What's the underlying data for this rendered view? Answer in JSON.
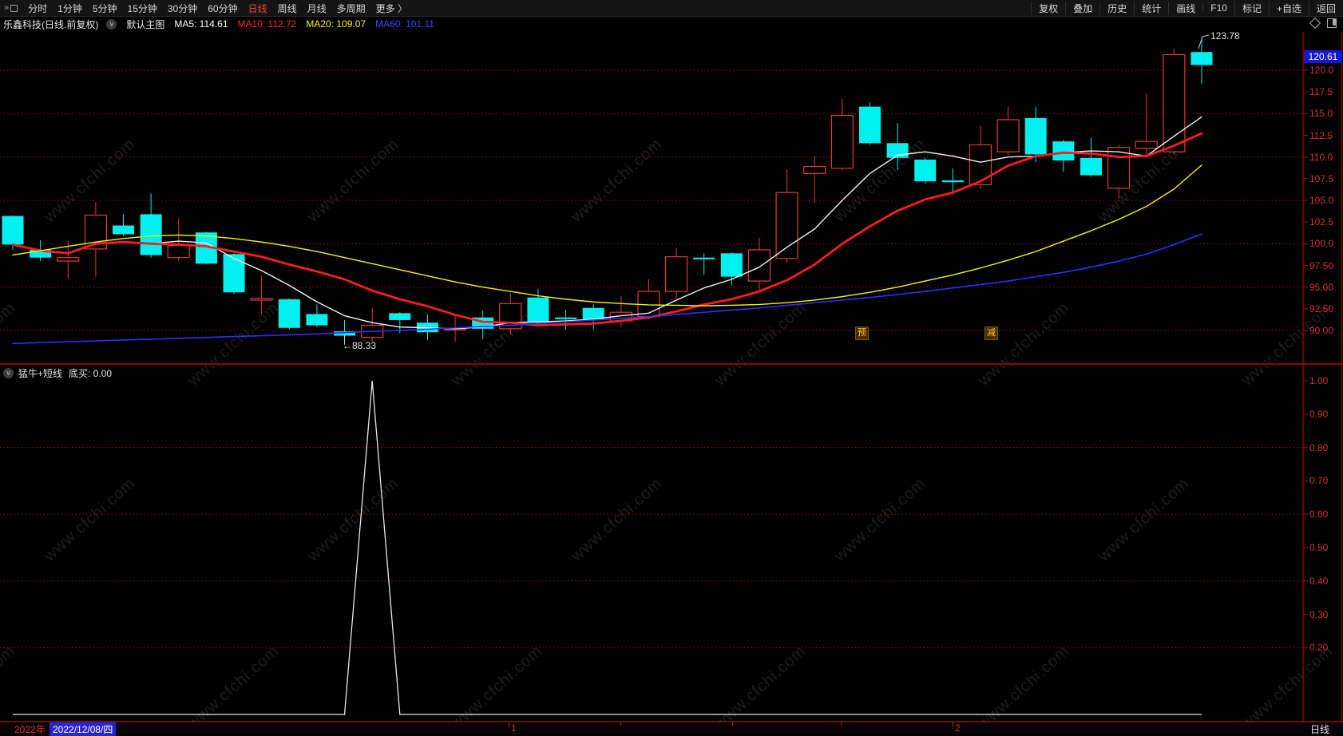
{
  "topbar": {
    "left_items": [
      "分时",
      "1分钟",
      "5分钟",
      "15分钟",
      "30分钟",
      "60分钟",
      "日线",
      "周线",
      "月线",
      "多周期",
      "更多 〉"
    ],
    "active_item": "日线",
    "right_items": [
      "复权",
      "叠加",
      "历史",
      "统计",
      "画线",
      "F10",
      "标记",
      "+自选",
      "返回"
    ]
  },
  "header": {
    "title": "乐鑫科技(日线.前复权)",
    "layout_label": "默认主图",
    "ma": [
      {
        "text": "MA5: 114.61",
        "color": "#ffffff"
      },
      {
        "text": "MA10: 112.72",
        "color": "#ff2525"
      },
      {
        "text": "MA20: 109.07",
        "color": "#f5f500"
      },
      {
        "text": "MA60: 101.11",
        "color": "#4242ff"
      }
    ]
  },
  "watermark": {
    "text": "www.cfchi.com"
  },
  "chart_data": {
    "type": "candlestick",
    "symbol": "乐鑫科技",
    "period": "日线",
    "adjust": "前复权",
    "first_visible_date": "2022/12/08",
    "ylim": [
      88,
      124
    ],
    "y_ticks": [
      "120.0",
      "117.5",
      "115.0",
      "112.5",
      "110.0",
      "107.5",
      "105.0",
      "102.5",
      "100.0",
      "97.50",
      "95.00",
      "92.50",
      "90.00"
    ],
    "y_tick_values": [
      120,
      117.5,
      115,
      112.5,
      110,
      107.5,
      105,
      102.5,
      100,
      97.5,
      95,
      92.5,
      90
    ],
    "grid_values": [
      120,
      115,
      110,
      105,
      100,
      95,
      90
    ],
    "candles": [
      [
        103.2,
        103.3,
        99.3,
        99.9
      ],
      [
        99.3,
        100.4,
        98.0,
        98.4
      ],
      [
        98.0,
        100.3,
        96.0,
        98.4
      ],
      [
        99.4,
        104.8,
        96.2,
        103.3
      ],
      [
        102.1,
        103.4,
        100.9,
        101.1
      ],
      [
        103.4,
        105.8,
        98.4,
        98.7
      ],
      [
        98.4,
        102.9,
        98.0,
        99.8
      ],
      [
        101.3,
        101.4,
        97.6,
        97.7
      ],
      [
        98.8,
        98.9,
        94.2,
        94.4
      ],
      [
        93.5,
        96.3,
        91.9,
        93.7
      ],
      [
        93.6,
        93.7,
        90.1,
        90.3
      ],
      [
        91.9,
        93.0,
        90.4,
        90.6
      ],
      [
        89.9,
        91.2,
        88.33,
        89.4
      ],
      [
        89.2,
        92.6,
        88.7,
        90.6
      ],
      [
        92.0,
        92.1,
        89.7,
        91.2
      ],
      [
        90.9,
        91.9,
        88.9,
        89.8
      ],
      [
        90.1,
        91.7,
        88.7,
        90.2
      ],
      [
        91.5,
        92.3,
        89.0,
        90.2
      ],
      [
        90.2,
        94.3,
        89.5,
        93.1
      ],
      [
        93.8,
        94.8,
        90.7,
        90.9
      ],
      [
        91.5,
        92.4,
        90.1,
        91.3
      ],
      [
        92.6,
        93.0,
        90.1,
        91.2
      ],
      [
        91.1,
        94.0,
        90.4,
        92.1
      ],
      [
        91.6,
        95.9,
        91.3,
        94.5
      ],
      [
        94.5,
        99.5,
        93.6,
        98.5
      ],
      [
        98.4,
        98.9,
        96.4,
        98.2
      ],
      [
        98.9,
        99.0,
        95.2,
        96.2
      ],
      [
        95.7,
        100.7,
        94.7,
        99.3
      ],
      [
        98.3,
        108.6,
        97.8,
        105.9
      ],
      [
        108.1,
        110.1,
        104.7,
        108.9
      ],
      [
        108.7,
        116.7,
        108.5,
        114.8
      ],
      [
        115.8,
        116.3,
        111.4,
        111.6
      ],
      [
        111.6,
        113.9,
        108.5,
        109.9
      ],
      [
        109.7,
        109.9,
        106.9,
        107.2
      ],
      [
        107.3,
        108.7,
        105.7,
        107.1
      ],
      [
        106.8,
        113.6,
        106.3,
        111.4
      ],
      [
        110.6,
        115.8,
        110.2,
        114.3
      ],
      [
        114.5,
        115.8,
        109.4,
        110.3
      ],
      [
        111.8,
        112.0,
        108.3,
        109.6
      ],
      [
        109.9,
        112.2,
        107.7,
        107.9
      ],
      [
        106.4,
        111.4,
        105.2,
        111.1
      ],
      [
        111.0,
        117.3,
        110.1,
        111.8
      ],
      [
        110.6,
        122.5,
        110.3,
        121.8
      ],
      [
        122.1,
        123.78,
        118.4,
        120.61
      ]
    ],
    "ma_series": [
      {
        "name": "MA5",
        "color": "#f2f2f2",
        "width": 1.4,
        "values": [
          99.9,
          99.2,
          98.9,
          100.0,
          100.2,
          100.0,
          100.3,
          100.1,
          98.3,
          96.9,
          95.2,
          93.3,
          91.7,
          90.9,
          90.4,
          90.3,
          90.2,
          90.4,
          90.9,
          91.0,
          91.1,
          91.3,
          91.7,
          92.0,
          93.5,
          94.9,
          95.9,
          97.3,
          99.6,
          101.7,
          105.0,
          108.1,
          110.2,
          110.6,
          110.1,
          109.4,
          110.0,
          110.1,
          110.5,
          110.7,
          110.6,
          110.1,
          112.4,
          114.61
        ]
      },
      {
        "name": "MA10",
        "color": "#ff1c1c",
        "width": 2.8,
        "values": [
          99.9,
          99.2,
          98.9,
          100.0,
          100.2,
          100.0,
          99.9,
          99.7,
          99.1,
          98.5,
          97.6,
          96.8,
          95.9,
          94.6,
          93.6,
          92.8,
          91.8,
          91.0,
          90.9,
          90.6,
          90.7,
          90.8,
          91.1,
          91.5,
          92.2,
          93.0,
          93.6,
          94.5,
          95.8,
          97.6,
          100.0,
          102.0,
          103.8,
          105.1,
          105.9,
          107.2,
          109.0,
          110.1,
          110.5,
          110.4,
          110.0,
          110.1,
          111.3,
          112.72
        ]
      },
      {
        "name": "MA20",
        "color": "#f5f500",
        "width": 1.4,
        "values": [
          98.7,
          99.2,
          99.7,
          100.2,
          100.6,
          100.9,
          101.0,
          100.9,
          100.6,
          100.2,
          99.7,
          99.1,
          98.4,
          97.7,
          97.0,
          96.3,
          95.6,
          95.0,
          94.5,
          94.0,
          93.6,
          93.3,
          93.1,
          92.95,
          92.9,
          92.85,
          92.9,
          93.0,
          93.2,
          93.5,
          93.9,
          94.4,
          95.0,
          95.7,
          96.4,
          97.2,
          98.1,
          99.1,
          100.3,
          101.5,
          102.8,
          104.3,
          106.3,
          109.07
        ]
      },
      {
        "name": "MA60",
        "color": "#2e2eff",
        "width": 1.6,
        "values": [
          88.5,
          88.6,
          88.7,
          88.8,
          88.9,
          89.0,
          89.1,
          89.2,
          89.3,
          89.4,
          89.5,
          89.6,
          89.75,
          89.9,
          90.0,
          90.15,
          90.3,
          90.45,
          90.6,
          90.8,
          91.0,
          91.2,
          91.4,
          91.6,
          91.85,
          92.1,
          92.35,
          92.6,
          92.9,
          93.2,
          93.5,
          93.8,
          94.15,
          94.5,
          94.9,
          95.3,
          95.7,
          96.2,
          96.7,
          97.3,
          98.0,
          98.8,
          99.9,
          101.11
        ]
      }
    ],
    "sub_indicator": {
      "name": "猛牛+短线",
      "value_label": "底买: 0.00",
      "ylim": [
        0,
        1.05
      ],
      "y_ticks": [
        "1.00",
        "0.90",
        "0.80",
        "0.70",
        "0.60",
        "0.50",
        "0.40",
        "0.30",
        "0.20"
      ],
      "y_tick_values": [
        1.0,
        0.9,
        0.8,
        0.7,
        0.6,
        0.5,
        0.4,
        0.3,
        0.2
      ],
      "grid_values": [
        0.8,
        0.6,
        0.4,
        0.2
      ],
      "values": [
        0,
        0,
        0,
        0,
        0,
        0,
        0,
        0,
        0,
        0,
        0,
        0,
        0,
        1,
        0,
        0,
        0,
        0,
        0,
        0,
        0,
        0,
        0,
        0,
        0,
        0,
        0,
        0,
        0,
        0,
        0,
        0,
        0,
        0,
        0,
        0,
        0,
        0,
        0,
        0,
        0,
        0,
        0,
        0
      ]
    },
    "annotations": {
      "low_label": "←88.33",
      "low_index": 12,
      "high_label": "123.78",
      "high_index": 43,
      "last_price": "120.61"
    },
    "event_markers": [
      {
        "label": "预",
        "x": 1071
      },
      {
        "label": "减",
        "x": 1233
      }
    ]
  },
  "bottom_bar": {
    "year": "2022年",
    "date": "2022/12/08/四",
    "month_marks": [
      {
        "label": "1",
        "x": 637
      },
      {
        "label": "2",
        "x": 1193
      }
    ],
    "minor_ticks_x": [
      777,
      917,
      1053
    ],
    "period_label": "日线"
  }
}
